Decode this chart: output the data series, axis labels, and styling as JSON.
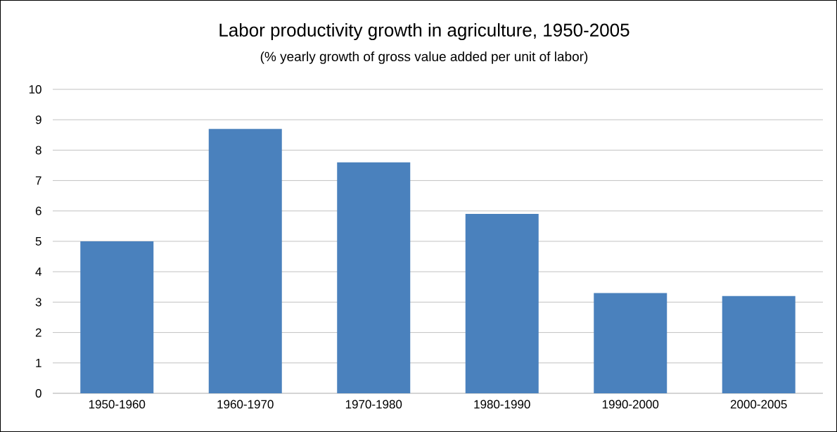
{
  "chart_data": {
    "type": "bar",
    "title": "Labor productivity growth in agriculture, 1950-2005",
    "subtitle": "(% yearly growth of gross value added per unit of labor)",
    "categories": [
      "1950-1960",
      "1960-1970",
      "1970-1980",
      "1980-1990",
      "1990-2000",
      "2000-2005"
    ],
    "values": [
      5.0,
      8.7,
      7.6,
      5.9,
      3.3,
      3.2
    ],
    "color": "#4a81bd",
    "ylim": [
      0,
      10
    ],
    "yticks": [
      0,
      1,
      2,
      3,
      4,
      5,
      6,
      7,
      8,
      9,
      10
    ],
    "grid": "y"
  }
}
